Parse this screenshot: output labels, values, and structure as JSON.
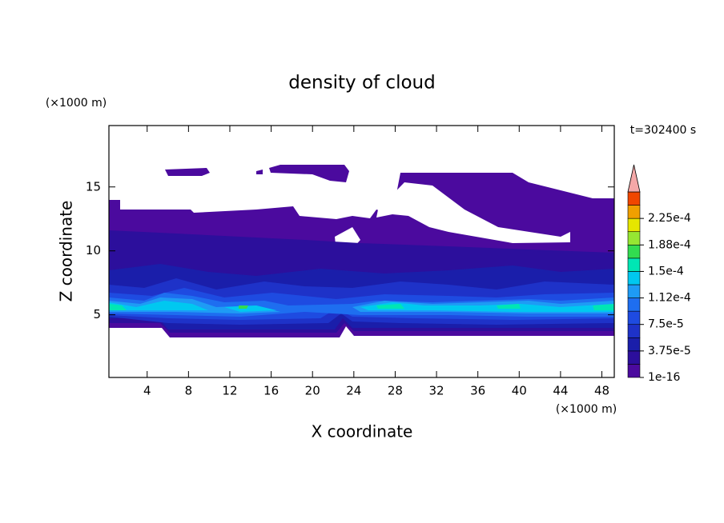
{
  "chart_data": {
    "type": "contour",
    "title": "density of cloud",
    "x_label": "X coordinate",
    "y_label": "Z coordinate",
    "x_unit": "(×1000 m)",
    "y_unit": "(×1000 m)",
    "time_label": "t=302400 s",
    "xlim": [
      0.3,
      49.2
    ],
    "ylim": [
      0.1,
      19.8
    ],
    "xticks": [
      4,
      8,
      12,
      16,
      20,
      24,
      28,
      32,
      36,
      40,
      44,
      48
    ],
    "yticks": [
      5,
      10,
      15
    ],
    "colorbar": {
      "bounds": [
        1e-16,
        1.875e-05,
        3.75e-05,
        5.625e-05,
        7.5e-05,
        9.375e-05,
        0.0001125,
        0.00013125,
        0.00015,
        0.00016875,
        0.0001875,
        0.00020625,
        0.000225,
        0.00024375,
        0.0002625
      ],
      "colors": [
        "#4b0a9e",
        "#2c0f9c",
        "#1a1eaa",
        "#1e32c8",
        "#1e4be1",
        "#1e6ef0",
        "#1e9bf5",
        "#00c8f0",
        "#00e6b4",
        "#32dc50",
        "#96e632",
        "#e6e600",
        "#f0a000",
        "#f04600"
      ],
      "extend_color": "#f4a8a8",
      "ticks": [
        1e-16,
        {
          "value": 3.75e-05,
          "label": "3.75e-5"
        },
        {
          "value": 7.5e-05,
          "label": "7.5e-5"
        },
        {
          "value": 0.0001125,
          "label": "1.12e-4"
        },
        {
          "value": 0.00015,
          "label": "1.5e-4"
        },
        {
          "value": 0.0001875,
          "label": "1.88e-4"
        },
        {
          "value": 0.000225,
          "label": "2.25e-4"
        }
      ]
    }
  }
}
